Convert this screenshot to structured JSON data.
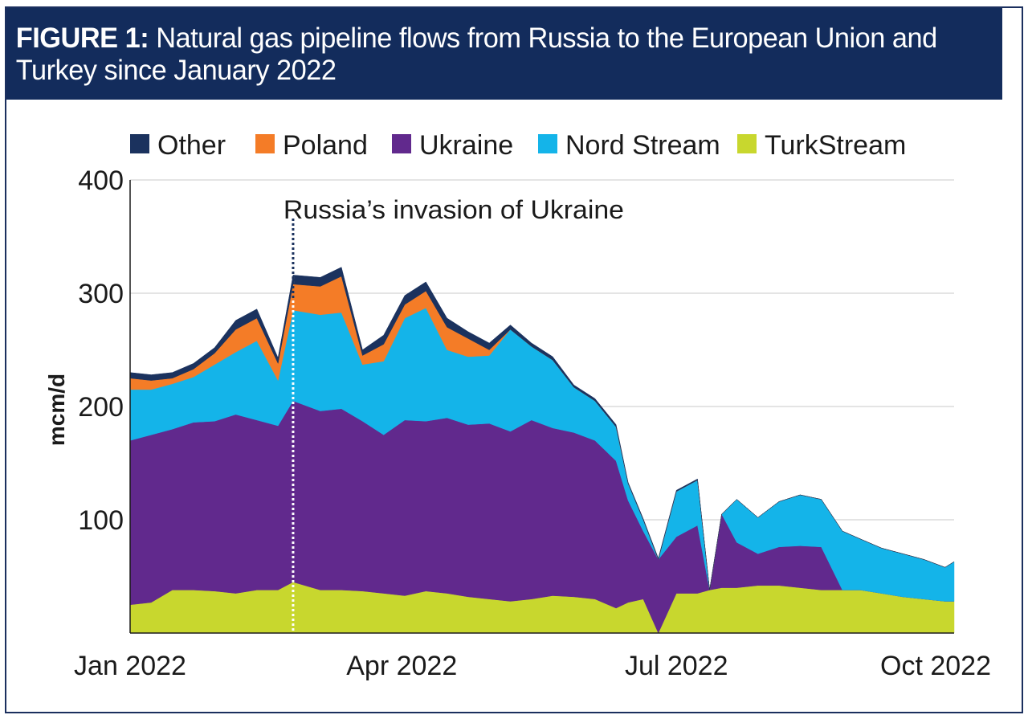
{
  "figure": {
    "label": "FIGURE 1:",
    "title": "Natural gas pipeline flows from Russia to the European Union and Turkey since January 2022"
  },
  "chart_data": {
    "type": "area",
    "stacked": true,
    "title": "Natural gas pipeline flows from Russia to the European Union and Turkey since January 2022",
    "ylabel": "mcm/d",
    "xlabel": "",
    "ylim": [
      0,
      400
    ],
    "yticks": [
      100,
      200,
      300,
      400
    ],
    "ytick_labels": [
      "100",
      "200",
      "300",
      "400"
    ],
    "xticks": [
      "2022-01-01",
      "2022-04-01",
      "2022-07-01",
      "2022-10-01"
    ],
    "xtick_labels": [
      "Jan 2022",
      "Apr 2022",
      "Jul 2022",
      "Oct 2022"
    ],
    "xlim": [
      "2022-01-01",
      "2022-10-01"
    ],
    "grid": "horizontal",
    "legend_position": "top",
    "annotation": {
      "date": "2022-02-24",
      "text": "Russia’s invasion of Ukraine"
    },
    "x": [
      "2022-01-01",
      "2022-01-08",
      "2022-01-15",
      "2022-01-22",
      "2022-01-29",
      "2022-02-05",
      "2022-02-12",
      "2022-02-19",
      "2022-02-24",
      "2022-03-05",
      "2022-03-12",
      "2022-03-19",
      "2022-03-26",
      "2022-04-02",
      "2022-04-09",
      "2022-04-16",
      "2022-04-23",
      "2022-04-30",
      "2022-05-07",
      "2022-05-14",
      "2022-05-21",
      "2022-05-28",
      "2022-06-04",
      "2022-06-11",
      "2022-06-15",
      "2022-06-20",
      "2022-06-25",
      "2022-07-01",
      "2022-07-08",
      "2022-07-12",
      "2022-07-16",
      "2022-07-21",
      "2022-07-28",
      "2022-08-04",
      "2022-08-11",
      "2022-08-18",
      "2022-08-25",
      "2022-08-31",
      "2022-09-07",
      "2022-09-14",
      "2022-09-21",
      "2022-09-28",
      "2022-10-01"
    ],
    "series": [
      {
        "name": "TurkStream",
        "color": "#c8d72e",
        "values": [
          25,
          27,
          38,
          38,
          37,
          35,
          38,
          38,
          45,
          38,
          38,
          37,
          35,
          33,
          37,
          35,
          32,
          30,
          28,
          30,
          33,
          32,
          30,
          22,
          27,
          30,
          0,
          35,
          35,
          38,
          40,
          40,
          42,
          42,
          40,
          38,
          38,
          38,
          35,
          32,
          30,
          28,
          28
        ]
      },
      {
        "name": "Ukraine",
        "color": "#61298d",
        "values": [
          145,
          148,
          142,
          148,
          150,
          158,
          150,
          145,
          160,
          158,
          160,
          150,
          140,
          155,
          150,
          155,
          152,
          155,
          150,
          158,
          148,
          145,
          140,
          130,
          90,
          60,
          65,
          50,
          60,
          0,
          65,
          40,
          28,
          34,
          37,
          38,
          0,
          0,
          0,
          0,
          0,
          0,
          0
        ]
      },
      {
        "name": "Nord Stream",
        "color": "#14b4e9",
        "values": [
          45,
          40,
          40,
          40,
          50,
          55,
          70,
          40,
          80,
          85,
          85,
          50,
          65,
          90,
          100,
          60,
          60,
          60,
          90,
          65,
          60,
          40,
          35,
          30,
          15,
          10,
          0,
          40,
          40,
          0,
          0,
          38,
          32,
          40,
          45,
          42,
          52,
          45,
          40,
          38,
          35,
          30,
          35
        ]
      },
      {
        "name": "Poland",
        "color": "#f47c27",
        "values": [
          10,
          8,
          5,
          7,
          10,
          20,
          20,
          15,
          23,
          25,
          32,
          8,
          15,
          12,
          15,
          20,
          16,
          5,
          0,
          0,
          0,
          0,
          0,
          0,
          0,
          0,
          0,
          0,
          0,
          0,
          0,
          0,
          0,
          0,
          0,
          0,
          0,
          0,
          0,
          0,
          0,
          0,
          0
        ]
      },
      {
        "name": "Other",
        "color": "#1b325e",
        "values": [
          5,
          5,
          5,
          5,
          5,
          8,
          8,
          5,
          8,
          8,
          8,
          5,
          8,
          8,
          8,
          8,
          6,
          6,
          4,
          3,
          3,
          2,
          2,
          2,
          1,
          1,
          1,
          1,
          1,
          0,
          0,
          0,
          0,
          0,
          0,
          0,
          0,
          0,
          0,
          0,
          0,
          0,
          0
        ]
      }
    ],
    "legend_order": [
      "Other",
      "Poland",
      "Ukraine",
      "Nord Stream",
      "TurkStream"
    ]
  }
}
